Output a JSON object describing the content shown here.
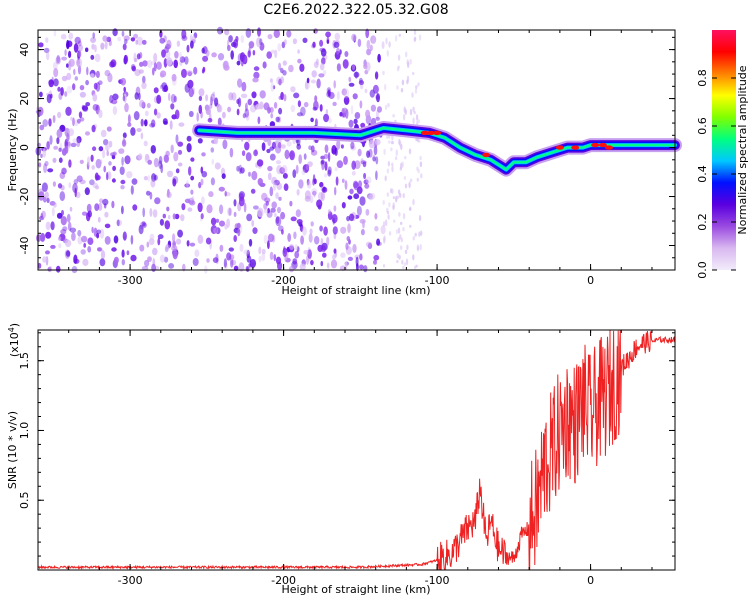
{
  "title": "C2E6.2022.322.05.32.G08",
  "chart_data": [
    {
      "type": "heatmap",
      "xlabel": "Height of straight line (km)",
      "ylabel": "Frequency (Hz)",
      "xlim": [
        -360,
        55
      ],
      "ylim": [
        -50,
        48
      ],
      "xticks": [
        -300,
        -200,
        -100,
        0
      ],
      "xtick_labels": [
        "-300",
        "-200",
        "-100",
        "0"
      ],
      "yticks": [
        -40,
        -20,
        0,
        20,
        40
      ],
      "ytick_labels": [
        "-40",
        "-20",
        "0",
        "20",
        "40"
      ],
      "grid": false,
      "colorbar": {
        "label": "Normalized spectral amplitude",
        "range": [
          0,
          1
        ],
        "ticks": [
          0,
          0.2,
          0.4,
          0.6,
          0.8
        ],
        "tick_labels": [
          "0.0",
          "0.2",
          "0.4",
          "0.6",
          "0.8"
        ],
        "colormap": [
          "#f2ecfb",
          "#d9b8f0",
          "#9a4ae0",
          "#5a00e0",
          "#0010ff",
          "#00c8ff",
          "#00ff80",
          "#80ff00",
          "#ffff00",
          "#ff8000",
          "#ff0000",
          "#ff1060"
        ]
      },
      "ridge": {
        "x": [
          -255,
          -230,
          -205,
          -180,
          -150,
          -135,
          -120,
          -105,
          -95,
          -85,
          -75,
          -65,
          -55,
          -50,
          -42,
          -35,
          -25,
          -15,
          -5,
          0,
          10,
          25,
          40,
          55
        ],
        "y": [
          7,
          6,
          6,
          6,
          5,
          8,
          7,
          6,
          4,
          0,
          -3,
          -5,
          -9,
          -6,
          -6,
          -4,
          -2,
          0,
          0,
          1,
          1,
          1,
          1,
          1
        ],
        "peak_points": [
          [
            -108,
            6
          ],
          [
            -104,
            6
          ],
          [
            -100,
            6
          ],
          [
            -68,
            -3
          ],
          [
            -20,
            0
          ],
          [
            -10,
            0
          ],
          [
            3,
            1
          ],
          [
            8,
            1
          ],
          [
            12,
            0
          ]
        ]
      },
      "noise": {
        "x_range": [
          -360,
          -135
        ],
        "sparse_x_range": [
          -135,
          -110
        ]
      }
    },
    {
      "type": "line",
      "xlabel": "Height of straight line (km)",
      "ylabel": "SNR (10 * v/v)",
      "y_multiplier": "(x10^4)",
      "y_multiplier_base": "(x10",
      "y_multiplier_exp": "4",
      "y_multiplier_close": ")",
      "xlim": [
        -360,
        55
      ],
      "ylim": [
        0,
        1.72
      ],
      "xticks": [
        -300,
        -200,
        -100,
        0
      ],
      "xtick_labels": [
        "-300",
        "-200",
        "-100",
        "0"
      ],
      "yticks": [
        0.5,
        1.0,
        1.5
      ],
      "ytick_labels": [
        "0.5",
        "1.0",
        "1.5"
      ],
      "grid": false,
      "series": [
        {
          "color": "#ee2222",
          "x": [
            -360,
            -300,
            -250,
            -200,
            -150,
            -110,
            -100,
            -90,
            -80,
            -75,
            -72,
            -70,
            -68,
            -65,
            -60,
            -55,
            -50,
            -45,
            -40,
            -35,
            -30,
            -25,
            -20,
            -15,
            -10,
            -5,
            0,
            5,
            10,
            15,
            20,
            25,
            30,
            35,
            40,
            45,
            50,
            55
          ],
          "y": [
            0.02,
            0.02,
            0.02,
            0.02,
            0.02,
            0.04,
            0.07,
            0.12,
            0.3,
            0.35,
            0.6,
            0.4,
            0.2,
            0.35,
            0.15,
            0.1,
            0.08,
            0.25,
            0.3,
            0.45,
            0.75,
            0.85,
            1.0,
            1.1,
            1.05,
            1.2,
            1.1,
            1.2,
            1.25,
            1.35,
            1.45,
            1.52,
            1.6,
            1.63,
            1.64,
            1.65,
            1.65,
            1.65
          ]
        }
      ]
    }
  ]
}
